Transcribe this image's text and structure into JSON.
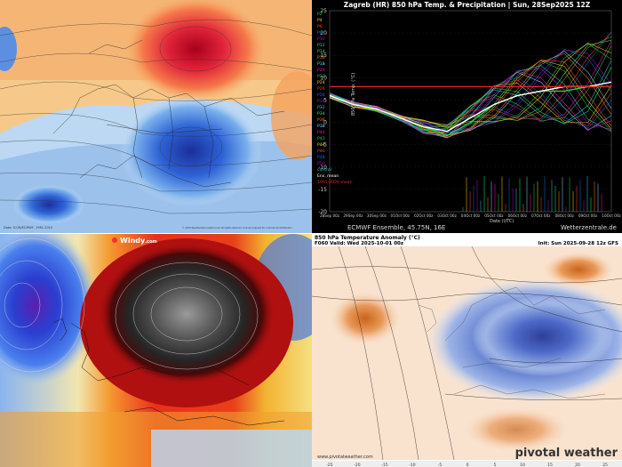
{
  "top_left": {
    "footer_left": "Data: ICON/ECMWF, 1981-2010",
    "footer_right": "© 2025 Weatherbell Analytics LLC All rights reserved. License required for commercial distribution"
  },
  "ensemble": {
    "title": "Zagreb  (HR)  850 hPa Temp. & Precipitation | Sun, 28Sep2025 12Z",
    "footer_left": "ECMWF Ensemble, 45.75N, 16E",
    "footer_right": "Wetterzentrale.de",
    "ylabel": "850 hPa Temp. (°C)",
    "xlabel": "Date (UTC)",
    "legend": [
      "P2",
      "P4",
      "P6",
      "P8",
      "P10",
      "P12",
      "P14",
      "P16",
      "P18",
      "P20",
      "P22",
      "P24",
      "P26",
      "P28",
      "P30",
      "P32",
      "P34",
      "P36",
      "P38",
      "P40",
      "P42",
      "P44",
      "P46",
      "P48",
      "P50",
      "control",
      "Ens. mean",
      "1991-2020 mean"
    ],
    "chart_data": {
      "type": "line",
      "ylim": [
        -20,
        25
      ],
      "yticks": [
        -20,
        -15,
        -10,
        -5,
        0,
        5,
        10,
        15,
        20,
        25
      ],
      "xticks": [
        "28Sep 00z",
        "29Sep 00z",
        "30Sep 00z",
        "01Oct 00z",
        "02Oct 00z",
        "03Oct 00z",
        "04Oct 00z",
        "05Oct 00z",
        "06Oct 00z",
        "07Oct 00z",
        "08Oct 00z",
        "09Oct 00z",
        "10Oct 00z"
      ],
      "series": [
        {
          "name": "control",
          "values": [
            6,
            4,
            3,
            1,
            -1,
            -3,
            0,
            4,
            6,
            7,
            7,
            8,
            8
          ]
        },
        {
          "name": "Ens. mean",
          "values": [
            6,
            4,
            3,
            1,
            -1,
            -2,
            1,
            4,
            6,
            7,
            8,
            8,
            9
          ]
        },
        {
          "name": "1991-2020 mean",
          "values": [
            8,
            8,
            8,
            8,
            8,
            8,
            8,
            8,
            8,
            8,
            8,
            8,
            8
          ]
        }
      ]
    }
  },
  "windy": {
    "logo": "Windy",
    "logo_suffix": ".com"
  },
  "pivotal": {
    "header1": "850 hPa Temperature Anomaly (°C)",
    "header2": "F060 Valid: Wed 2025-10-01 00z",
    "header3": "Init: Sun 2025-09-28 12z GFS",
    "url": "www.pivotalweather.com",
    "logo": "pivotal weather",
    "scale": [
      "-25",
      "-20",
      "-15",
      "-10",
      "-5",
      "0",
      "5",
      "10",
      "15",
      "20",
      "25"
    ]
  },
  "colors": {
    "warm": "#d9302a",
    "cold": "#2a4fc0",
    "ens_bg": "#000000"
  }
}
